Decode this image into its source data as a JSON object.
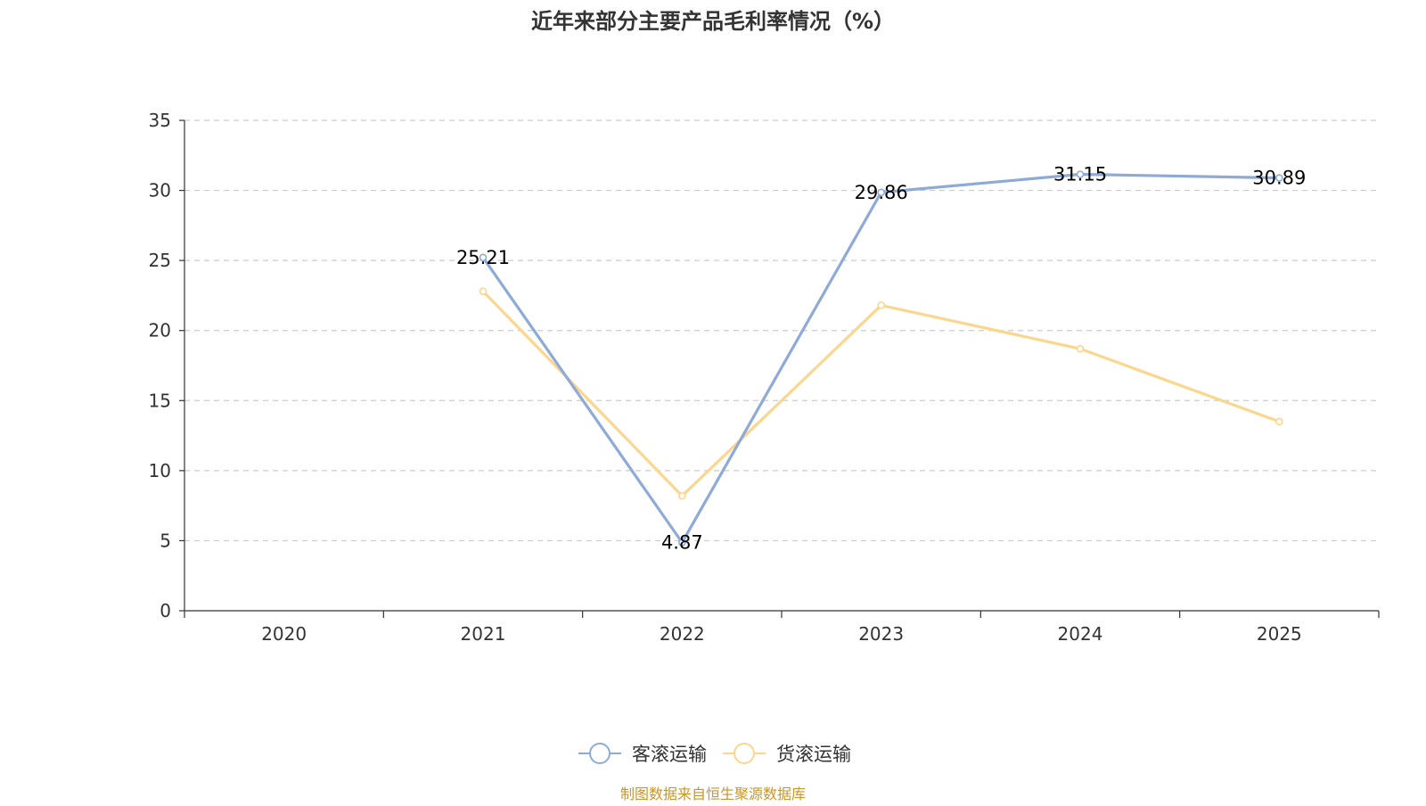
{
  "chart_data": {
    "type": "line",
    "title": "近年来部分主要产品毛利率情况（%）",
    "categories": [
      "2020",
      "2021",
      "2022",
      "2023",
      "2024",
      "2025"
    ],
    "ylim": [
      0,
      35
    ],
    "yticks": [
      0,
      5,
      10,
      15,
      20,
      25,
      30,
      35
    ],
    "ytick_labels": [
      "0",
      "5",
      "10",
      "15",
      "20",
      "25",
      "30",
      "35"
    ],
    "grid": true,
    "legend_position": "bottom-center",
    "series": [
      {
        "name": "客滚运输",
        "color": "#8eaad6",
        "values": [
          null,
          25.21,
          4.87,
          29.86,
          31.15,
          30.89
        ],
        "labels": [
          "",
          "25.21",
          "4.87",
          "29.86",
          "31.15",
          "30.89"
        ]
      },
      {
        "name": "货滚运输",
        "color": "#fbd68e",
        "values": [
          null,
          22.8,
          8.2,
          21.8,
          18.7,
          13.5
        ],
        "labels": [
          "",
          "",
          "",
          "",
          "",
          ""
        ]
      }
    ]
  },
  "source_text": "制图数据来自恒生聚源数据库",
  "colors": {
    "source_text": "#c9962a",
    "axis": "#333333",
    "grid": "#cccccc"
  }
}
